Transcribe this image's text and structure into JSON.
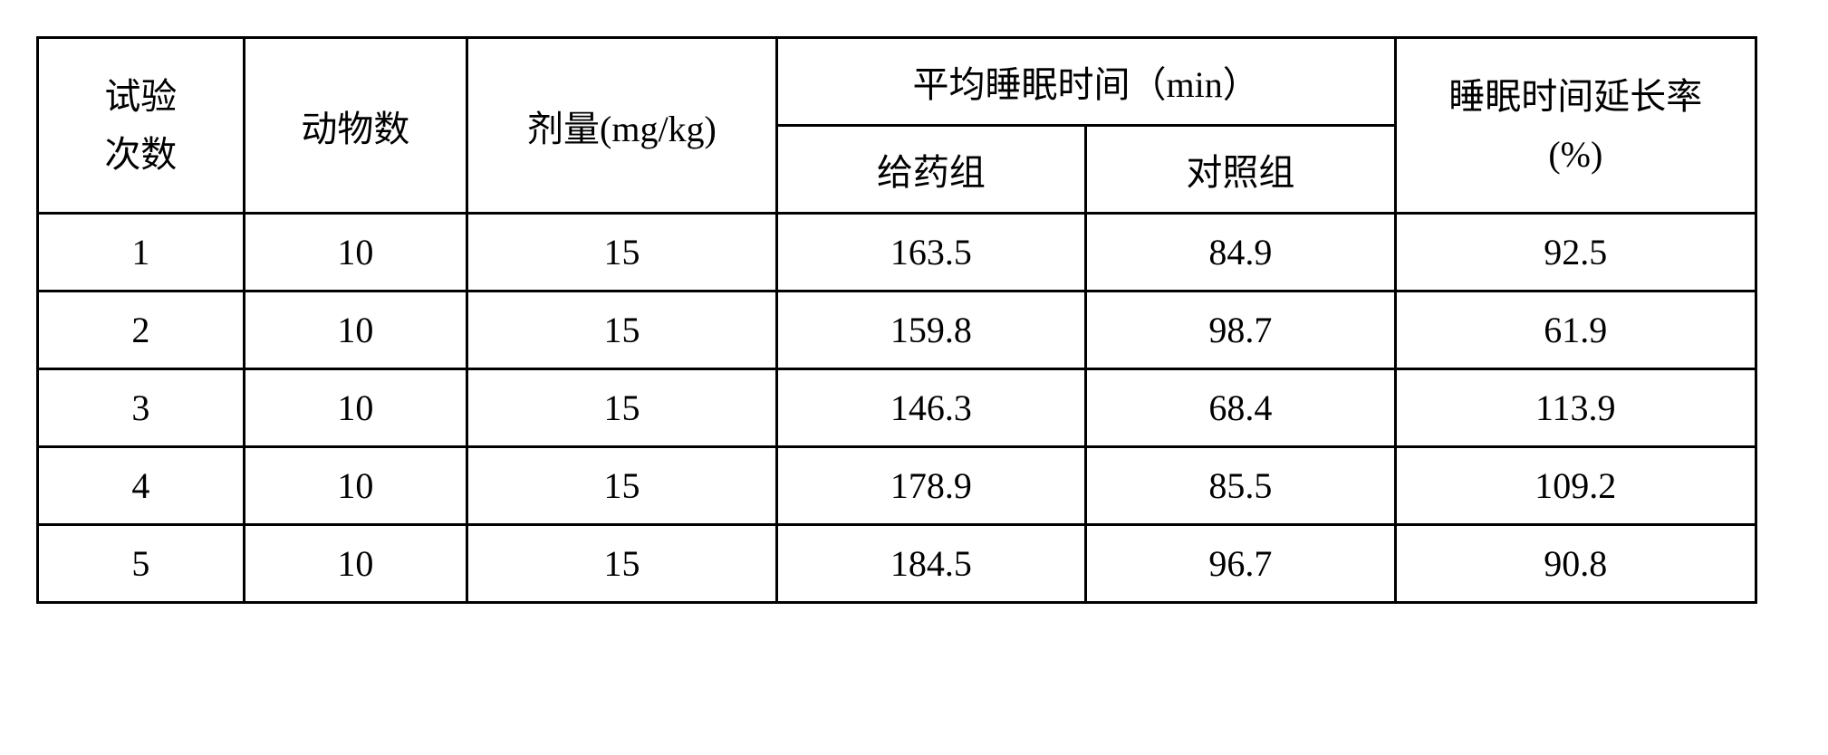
{
  "table": {
    "type": "table",
    "background_color": "#ffffff",
    "border_color": "#000000",
    "font_size_pt": 30,
    "columns": {
      "trial": "试验\n次数",
      "animals": "动物数",
      "dose": "剂量(mg/kg)",
      "sleep_group": "平均睡眠时间（min）",
      "treat": "给药组",
      "control": "对照组",
      "ext_rate": "睡眠时间延长率\n(%)"
    },
    "rows": [
      {
        "trial": "1",
        "animals": "10",
        "dose": "15",
        "treat": "163.5",
        "control": "84.9",
        "ext": "92.5"
      },
      {
        "trial": "2",
        "animals": "10",
        "dose": "15",
        "treat": "159.8",
        "control": "98.7",
        "ext": "61.9"
      },
      {
        "trial": "3",
        "animals": "10",
        "dose": "15",
        "treat": "146.3",
        "control": "68.4",
        "ext": "113.9"
      },
      {
        "trial": "4",
        "animals": "10",
        "dose": "15",
        "treat": "178.9",
        "control": "85.5",
        "ext": "109.2"
      },
      {
        "trial": "5",
        "animals": "10",
        "dose": "15",
        "treat": "184.5",
        "control": "96.7",
        "ext": "90.8"
      }
    ]
  }
}
